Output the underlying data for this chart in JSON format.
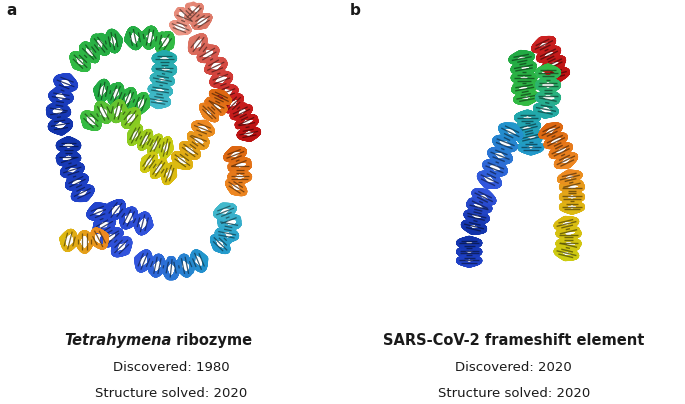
{
  "panel_a_label": "a",
  "panel_b_label": "b",
  "title_a_italic": "Tetrahymena",
  "title_a_rest": " ribozyme",
  "title_b": "SARS-CoV-2 frameshift element",
  "discovered_a": "Discovered: 1980",
  "structure_a": "Structure solved: 2020",
  "discovered_b": "Discovered: 2020",
  "structure_b": "Structure solved: 2020",
  "bg_color": "#ffffff",
  "text_color": "#1a1a1a",
  "title_fontsize": 10.5,
  "label_fontsize": 9.5,
  "panel_label_fontsize": 11
}
